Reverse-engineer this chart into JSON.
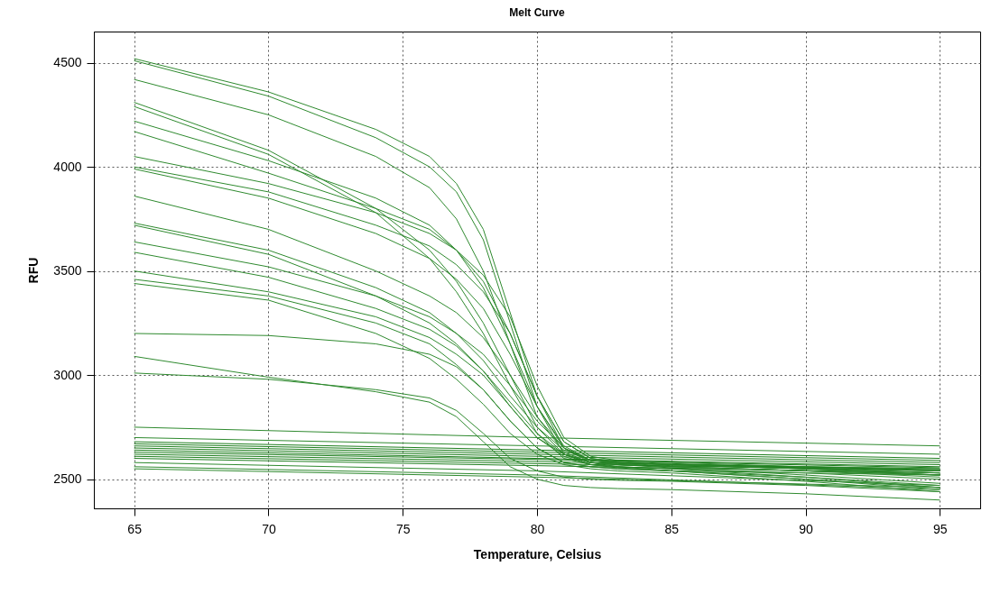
{
  "chart_data": {
    "type": "line",
    "title": "Melt Curve",
    "xlabel": "Temperature, Celsius",
    "ylabel": "RFU",
    "xlim": [
      63.5,
      96.5
    ],
    "ylim": [
      2360,
      4650
    ],
    "xticks": [
      65,
      70,
      75,
      80,
      85,
      90,
      95
    ],
    "yticks": [
      2500,
      3000,
      3500,
      4000,
      4500
    ],
    "grid": true,
    "legend": false,
    "x": [
      65,
      70,
      74,
      76,
      77,
      78,
      79,
      80,
      81,
      82,
      83,
      85,
      90,
      95
    ],
    "series": [
      {
        "color": "#2f8a2f",
        "values": [
          4520,
          4360,
          4180,
          4050,
          3920,
          3700,
          3300,
          2900,
          2650,
          2580,
          2560,
          2540,
          2500,
          2460
        ]
      },
      {
        "color": "#2f8a2f",
        "values": [
          4510,
          4340,
          4140,
          4000,
          3880,
          3650,
          3250,
          2850,
          2620,
          2570,
          2555,
          2540,
          2510,
          2470
        ]
      },
      {
        "color": "#2f8a2f",
        "values": [
          4420,
          4250,
          4050,
          3900,
          3750,
          3500,
          3150,
          2800,
          2630,
          2580,
          2570,
          2555,
          2520,
          2480
        ]
      },
      {
        "color": "#2f8a2f",
        "values": [
          4310,
          4080,
          3800,
          3600,
          3450,
          3250,
          3000,
          2750,
          2620,
          2580,
          2570,
          2560,
          2540,
          2520
        ]
      },
      {
        "color": "#2f8a2f",
        "values": [
          4290,
          4060,
          3780,
          3560,
          3400,
          3200,
          2950,
          2720,
          2600,
          2570,
          2560,
          2550,
          2530,
          2500
        ]
      },
      {
        "color": "#2f8a2f",
        "values": [
          4220,
          4030,
          3850,
          3720,
          3600,
          3420,
          3150,
          2850,
          2650,
          2590,
          2575,
          2560,
          2540,
          2510
        ]
      },
      {
        "color": "#2f8a2f",
        "values": [
          4170,
          3970,
          3800,
          3700,
          3600,
          3450,
          3200,
          2900,
          2680,
          2600,
          2580,
          2570,
          2550,
          2520
        ]
      },
      {
        "color": "#2f8a2f",
        "values": [
          4050,
          3920,
          3780,
          3680,
          3600,
          3480,
          3280,
          2950,
          2700,
          2610,
          2590,
          2580,
          2560,
          2540
        ]
      },
      {
        "color": "#2f8a2f",
        "values": [
          4000,
          3880,
          3720,
          3620,
          3530,
          3400,
          3200,
          2900,
          2680,
          2600,
          2585,
          2575,
          2555,
          2530
        ]
      },
      {
        "color": "#2f8a2f",
        "values": [
          3990,
          3850,
          3680,
          3560,
          3460,
          3320,
          3100,
          2850,
          2660,
          2590,
          2580,
          2570,
          2550,
          2530
        ]
      },
      {
        "color": "#2f8a2f",
        "values": [
          3860,
          3700,
          3500,
          3380,
          3300,
          3180,
          3000,
          2800,
          2650,
          2590,
          2580,
          2570,
          2550,
          2520
        ]
      },
      {
        "color": "#2f8a2f",
        "values": [
          3730,
          3600,
          3420,
          3300,
          3200,
          3070,
          2900,
          2750,
          2640,
          2590,
          2580,
          2570,
          2560,
          2550
        ]
      },
      {
        "color": "#2f8a2f",
        "values": [
          3720,
          3580,
          3380,
          3250,
          3150,
          3020,
          2850,
          2700,
          2620,
          2580,
          2575,
          2565,
          2555,
          2540
        ]
      },
      {
        "color": "#2f8a2f",
        "values": [
          3640,
          3520,
          3380,
          3280,
          3200,
          3100,
          2950,
          2780,
          2650,
          2590,
          2580,
          2570,
          2560,
          2550
        ]
      },
      {
        "color": "#2f8a2f",
        "values": [
          3590,
          3470,
          3320,
          3220,
          3140,
          3020,
          2870,
          2720,
          2620,
          2580,
          2570,
          2560,
          2540,
          2520
        ]
      },
      {
        "color": "#2f8a2f",
        "values": [
          3500,
          3400,
          3280,
          3180,
          3100,
          3000,
          2850,
          2700,
          2610,
          2570,
          2560,
          2550,
          2510,
          2460
        ]
      },
      {
        "color": "#2f8a2f",
        "values": [
          3460,
          3380,
          3250,
          3150,
          3050,
          2930,
          2780,
          2650,
          2580,
          2560,
          2550,
          2540,
          2500,
          2450
        ]
      },
      {
        "color": "#2f8a2f",
        "values": [
          3440,
          3360,
          3200,
          3080,
          2980,
          2860,
          2720,
          2620,
          2570,
          2550,
          2540,
          2530,
          2490,
          2440
        ]
      },
      {
        "color": "#2f8a2f",
        "values": [
          3200,
          3190,
          3150,
          3100,
          3040,
          2930,
          2780,
          2650,
          2580,
          2560,
          2550,
          2540,
          2530,
          2520
        ]
      },
      {
        "color": "#2f8a2f",
        "values": [
          3090,
          2990,
          2920,
          2870,
          2800,
          2680,
          2560,
          2500,
          2470,
          2460,
          2455,
          2450,
          2430,
          2400
        ]
      },
      {
        "color": "#2f8a2f",
        "values": [
          3010,
          2980,
          2930,
          2890,
          2830,
          2720,
          2600,
          2540,
          2510,
          2500,
          2495,
          2490,
          2470,
          2440
        ]
      },
      {
        "color": "#2f8a2f",
        "x": [
          65,
          80,
          95
        ],
        "values": [
          2750,
          2700,
          2660
        ]
      },
      {
        "color": "#2f8a2f",
        "x": [
          65,
          80,
          95
        ],
        "values": [
          2700,
          2660,
          2620
        ]
      },
      {
        "color": "#1f7f1f",
        "x": [
          65,
          80,
          95
        ],
        "values": [
          2680,
          2640,
          2600
        ]
      },
      {
        "color": "#1f7f1f",
        "x": [
          65,
          80,
          95
        ],
        "values": [
          2670,
          2630,
          2590
        ]
      },
      {
        "color": "#1f7f1f",
        "x": [
          65,
          80,
          95
        ],
        "values": [
          2660,
          2620,
          2580
        ]
      },
      {
        "color": "#1f7f1f",
        "x": [
          65,
          80,
          95
        ],
        "values": [
          2650,
          2610,
          2570
        ]
      },
      {
        "color": "#1f7f1f",
        "x": [
          65,
          80,
          95
        ],
        "values": [
          2640,
          2600,
          2560
        ]
      },
      {
        "color": "#1f7f1f",
        "x": [
          65,
          80,
          95
        ],
        "values": [
          2630,
          2595,
          2555
        ]
      },
      {
        "color": "#1f7f1f",
        "x": [
          65,
          80,
          95
        ],
        "values": [
          2620,
          2585,
          2545
        ]
      },
      {
        "color": "#1f7f1f",
        "x": [
          65,
          80,
          95
        ],
        "values": [
          2610,
          2575,
          2540
        ]
      },
      {
        "color": "#1f7f1f",
        "x": [
          65,
          80,
          95
        ],
        "values": [
          2600,
          2565,
          2530
        ]
      },
      {
        "color": "#2f8a2f",
        "x": [
          65,
          80,
          95
        ],
        "values": [
          2580,
          2540,
          2470
        ]
      },
      {
        "color": "#2f8a2f",
        "x": [
          65,
          80,
          95
        ],
        "values": [
          2560,
          2520,
          2450
        ]
      },
      {
        "color": "#2f8a2f",
        "x": [
          65,
          80,
          95
        ],
        "values": [
          2550,
          2510,
          2460
        ]
      }
    ]
  }
}
